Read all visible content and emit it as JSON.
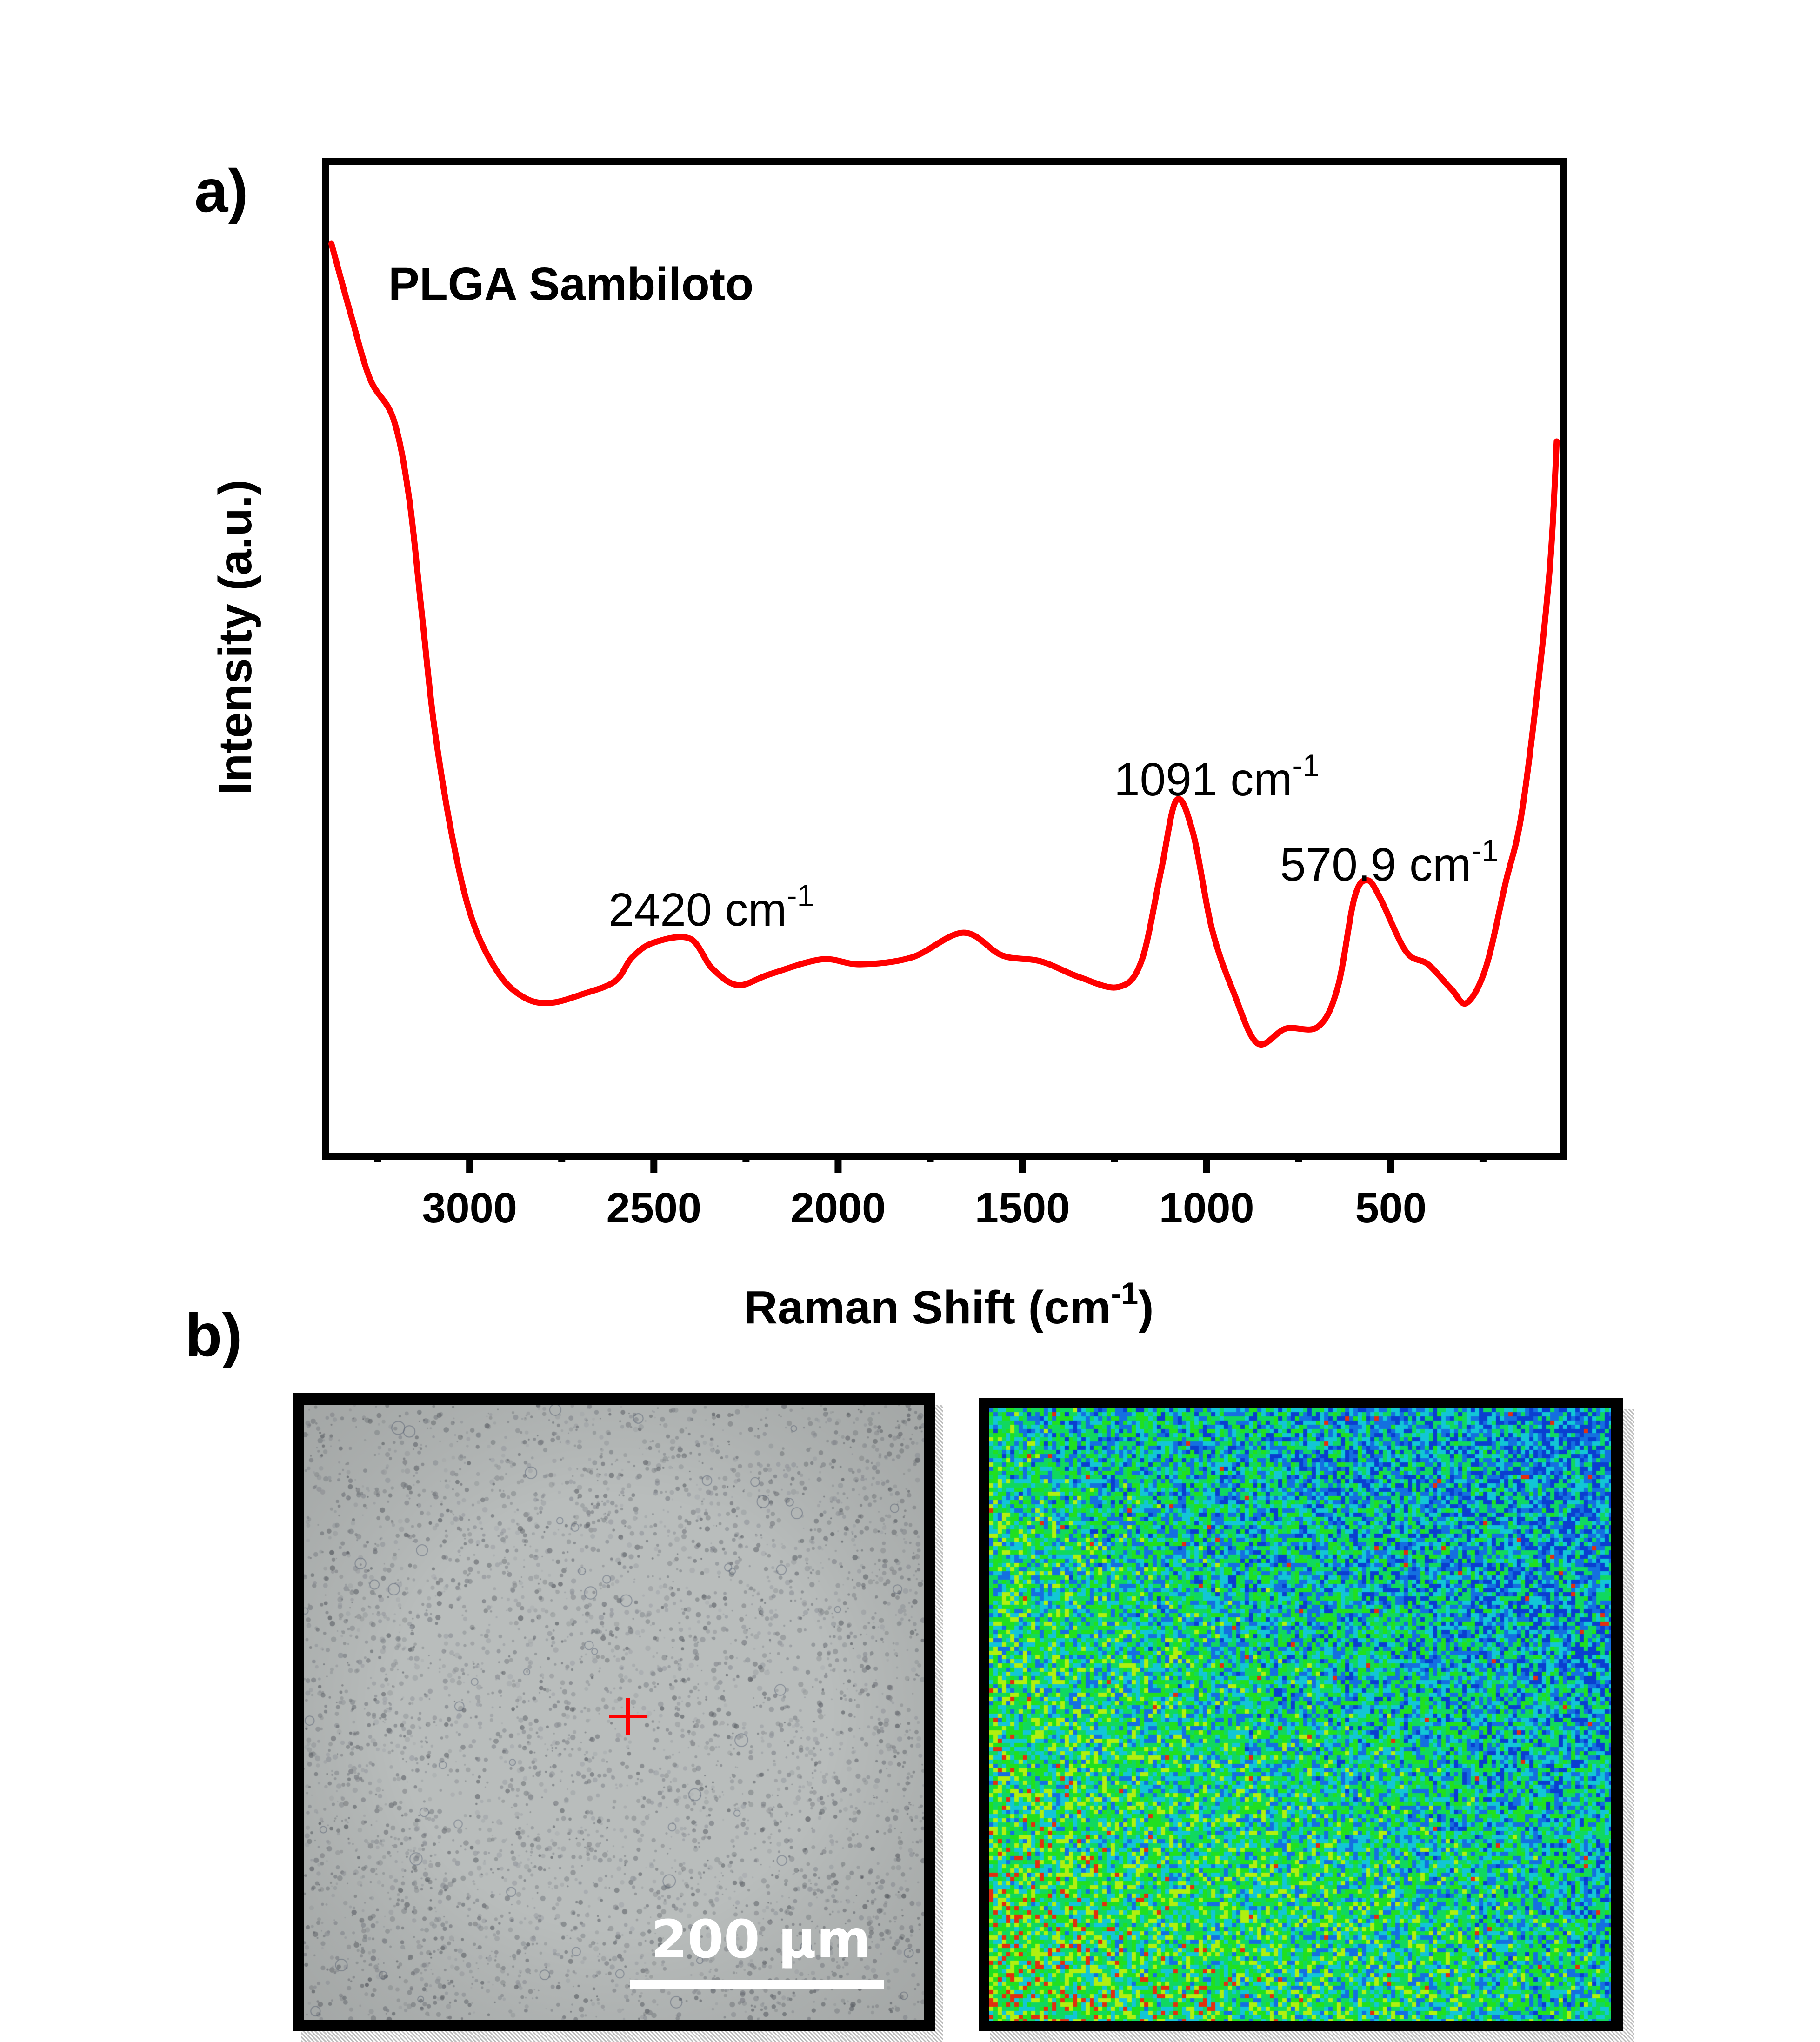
{
  "figure": {
    "panel_a_label": "a)",
    "panel_b_label": "b)"
  },
  "chart_data": {
    "type": "line",
    "title": "",
    "sample_label": "PLGA Sambiloto",
    "xlabel": "Raman Shift (cm",
    "xlabel_sup": "-1",
    "xlabel_close": ")",
    "ylabel": "Intensity (a.u.)",
    "xlim": [
      3382,
      41
    ],
    "ylim": [
      0,
      1
    ],
    "x_reversed": true,
    "y_ticks_shown": false,
    "grid": false,
    "x_major_ticks": [
      3000,
      2500,
      2000,
      1500,
      1000,
      500
    ],
    "x_tick_labels": [
      "3000",
      "2500",
      "2000",
      "1500",
      "1000",
      "500"
    ],
    "x_minor_ticks": [
      3250,
      2750,
      2250,
      1750,
      1250,
      750,
      250
    ],
    "line_color": "#ff0000",
    "series": [
      {
        "name": "PLGA Sambiloto",
        "x": [
          3375,
          3322,
          3270,
          3207,
          3165,
          3130,
          3095,
          3043,
          2990,
          2920,
          2850,
          2780,
          2692,
          2605,
          2559,
          2500,
          2402,
          2342,
          2272,
          2185,
          2045,
          1940,
          1800,
          1660,
          1555,
          1450,
          1345,
          1240,
          1177,
          1124,
          1082,
          1037,
          985,
          925,
          862,
          785,
          697,
          644,
          599,
          564,
          529,
          459,
          399,
          336,
          294,
          242,
          189,
          147,
          102,
          67,
          50
        ],
        "y": [
          0.92,
          0.848,
          0.783,
          0.743,
          0.665,
          0.547,
          0.429,
          0.312,
          0.233,
          0.181,
          0.157,
          0.152,
          0.161,
          0.174,
          0.198,
          0.213,
          0.217,
          0.187,
          0.17,
          0.181,
          0.196,
          0.191,
          0.198,
          0.223,
          0.2,
          0.194,
          0.178,
          0.168,
          0.194,
          0.285,
          0.357,
          0.324,
          0.226,
          0.161,
          0.111,
          0.126,
          0.128,
          0.168,
          0.258,
          0.276,
          0.258,
          0.204,
          0.191,
          0.166,
          0.152,
          0.188,
          0.273,
          0.339,
          0.469,
          0.6,
          0.72
        ]
      }
    ],
    "annotations": [
      {
        "text": "2420 cm",
        "sup": "-1",
        "x": 2420
      },
      {
        "text": "1091 cm",
        "sup": "-1",
        "x": 1091
      },
      {
        "text": "570.9 cm",
        "sup": "-1",
        "x": 570.9
      }
    ]
  },
  "images": {
    "optical": {
      "scale_bar_label": "200 μm",
      "marker": "+",
      "marker_color": "#ff0000",
      "background_color": "#b9bdbc"
    },
    "raman_map": {
      "colormap": [
        "#0a3fd0",
        "#1470e0",
        "#12c6d6",
        "#10d860",
        "#20e020",
        "#b0f010",
        "#e03010"
      ]
    }
  }
}
